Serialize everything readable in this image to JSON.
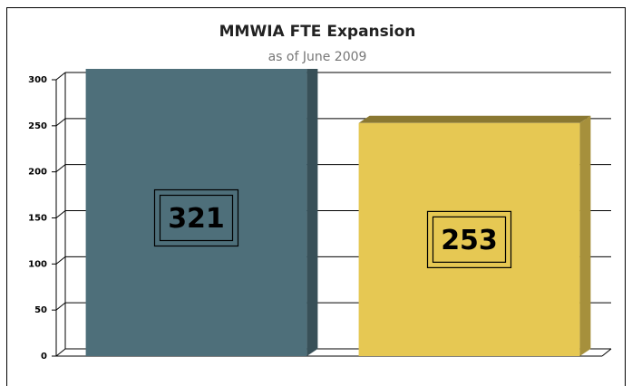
{
  "chart_data": {
    "type": "bar3d",
    "title": "MMWIA FTE Expansion",
    "subtitle": "as of June 2009",
    "categories": [
      null,
      null
    ],
    "values": [
      321,
      253
    ],
    "colors": [
      "#4e6f7a",
      "#e6c853"
    ],
    "ylim": [
      0,
      300
    ],
    "yticks": [
      0,
      50,
      100,
      150,
      200,
      250,
      300
    ],
    "grid": true
  }
}
